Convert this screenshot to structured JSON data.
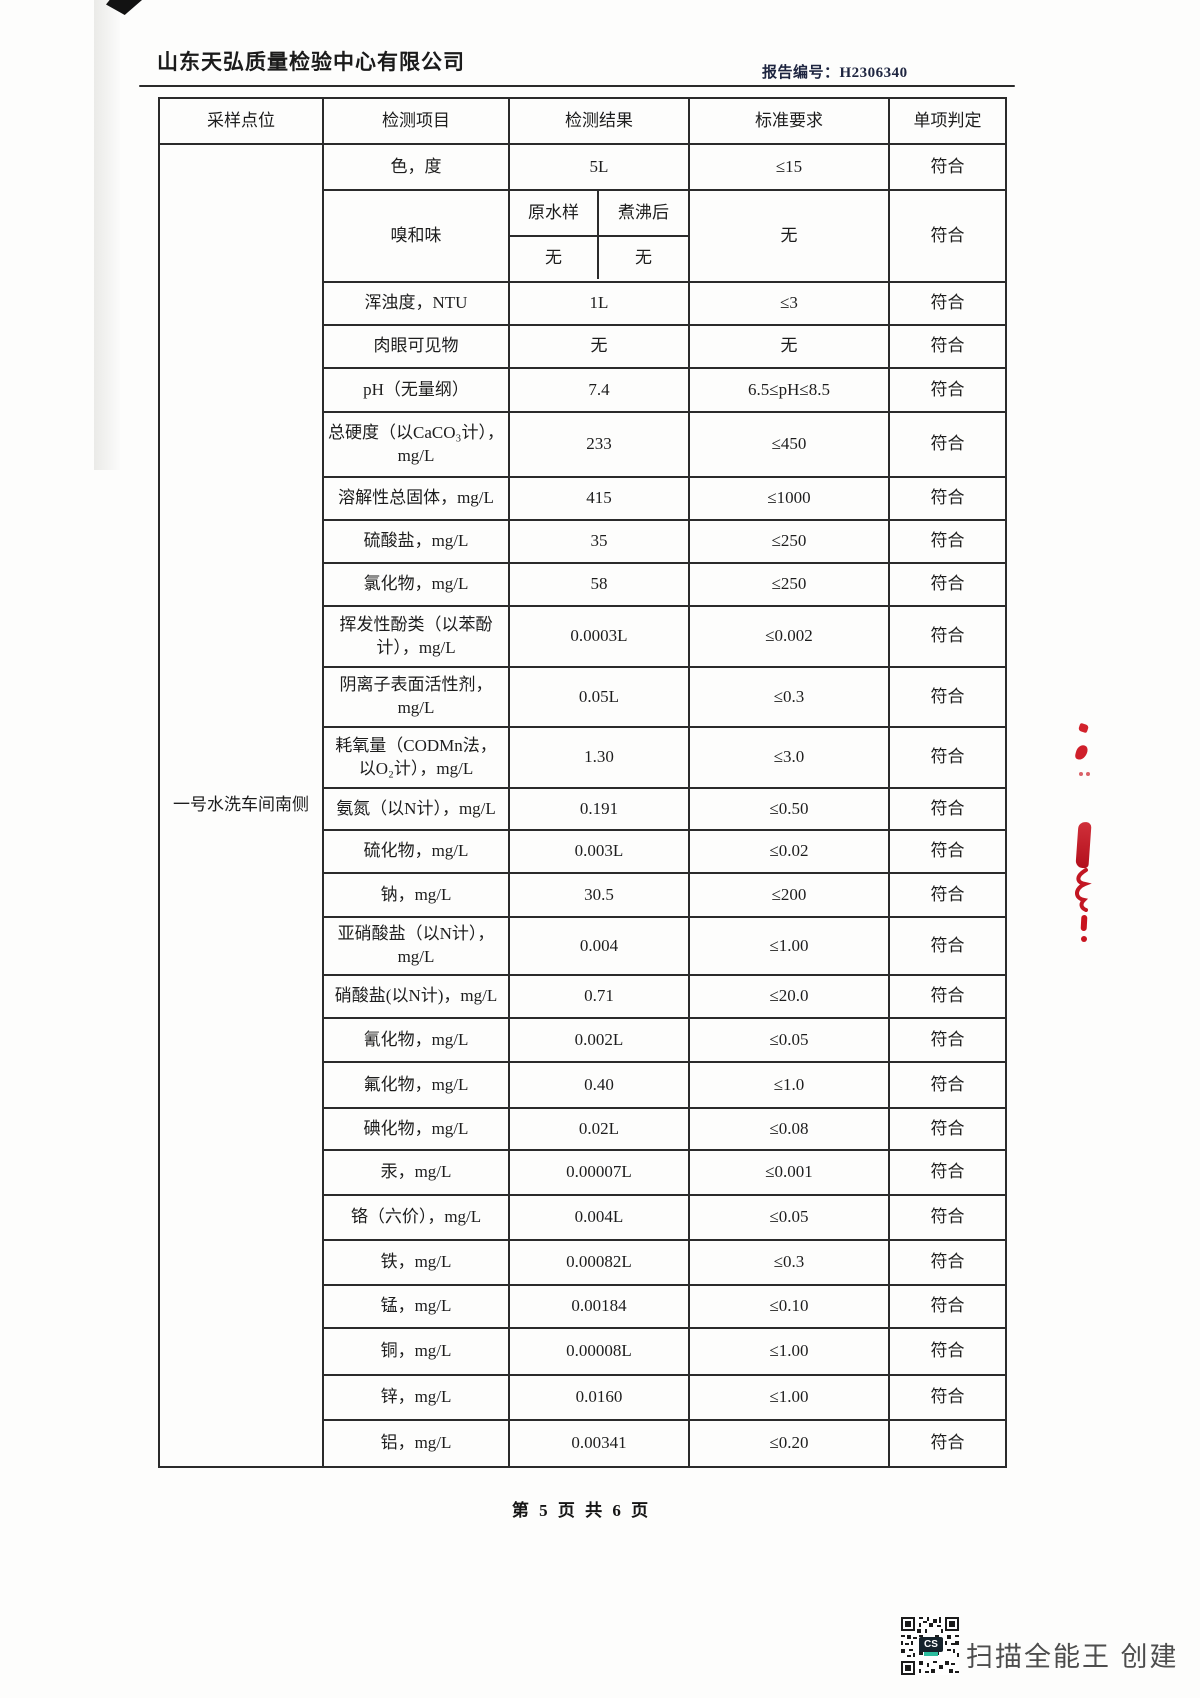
{
  "page": {
    "company_name": "山东天弘质量检验中心有限公司",
    "report_no_label": "报告编号：",
    "report_no_value": "H2306340",
    "page_footer": "第 5 页 共 6 页"
  },
  "table": {
    "headers": [
      "采样点位",
      "检测项目",
      "检测结果",
      "标准要求",
      "单项判定"
    ],
    "sampling_point": "一号水洗车间南侧",
    "rows": [
      {
        "item": "色，度",
        "result": "5L",
        "standard": "≤15",
        "judgment": "符合"
      },
      {
        "type": "split",
        "item": "嗅和味",
        "sub_headers": [
          "原水样",
          "煮沸后"
        ],
        "sub_values": [
          "无",
          "无"
        ],
        "standard": "无",
        "judgment": "符合"
      },
      {
        "item": "浑浊度，NTU",
        "result": "1L",
        "standard": "≤3",
        "judgment": "符合"
      },
      {
        "item": "肉眼可见物",
        "result": "无",
        "standard": "无",
        "judgment": "符合"
      },
      {
        "item": "pH（无量纲）",
        "result": "7.4",
        "standard": "6.5≤pH≤8.5",
        "judgment": "符合"
      },
      {
        "item": "总硬度（以CaCO₃计），mg/L",
        "result": "233",
        "standard": "≤450",
        "judgment": "符合"
      },
      {
        "item": "溶解性总固体，mg/L",
        "result": "415",
        "standard": "≤1000",
        "judgment": "符合"
      },
      {
        "item": "硫酸盐，mg/L",
        "result": "35",
        "standard": "≤250",
        "judgment": "符合"
      },
      {
        "item": "氯化物，mg/L",
        "result": "58",
        "standard": "≤250",
        "judgment": "符合"
      },
      {
        "item": "挥发性酚类（以苯酚计），mg/L",
        "result": "0.0003L",
        "standard": "≤0.002",
        "judgment": "符合"
      },
      {
        "item": "阴离子表面活性剂，mg/L",
        "result": "0.05L",
        "standard": "≤0.3",
        "judgment": "符合"
      },
      {
        "item": "耗氧量（CODMn法，以O₂计），mg/L",
        "result": "1.30",
        "standard": "≤3.0",
        "judgment": "符合"
      },
      {
        "item": "氨氮（以N计），mg/L",
        "result": "0.191",
        "standard": "≤0.50",
        "judgment": "符合"
      },
      {
        "item": "硫化物，mg/L",
        "result": "0.003L",
        "standard": "≤0.02",
        "judgment": "符合"
      },
      {
        "item": "钠，mg/L",
        "result": "30.5",
        "standard": "≤200",
        "judgment": "符合"
      },
      {
        "item": "亚硝酸盐（以N计），mg/L",
        "result": "0.004",
        "standard": "≤1.00",
        "judgment": "符合"
      },
      {
        "item": "硝酸盐(以N计)，mg/L",
        "result": "0.71",
        "standard": "≤20.0",
        "judgment": "符合"
      },
      {
        "item": "氰化物，mg/L",
        "result": "0.002L",
        "standard": "≤0.05",
        "judgment": "符合"
      },
      {
        "item": "氟化物，mg/L",
        "result": "0.40",
        "standard": "≤1.0",
        "judgment": "符合"
      },
      {
        "item": "碘化物，mg/L",
        "result": "0.02L",
        "standard": "≤0.08",
        "judgment": "符合"
      },
      {
        "item": "汞，mg/L",
        "result": "0.00007L",
        "standard": "≤0.001",
        "judgment": "符合"
      },
      {
        "item": "铬（六价），mg/L",
        "result": "0.004L",
        "standard": "≤0.05",
        "judgment": "符合"
      },
      {
        "item": "铁，mg/L",
        "result": "0.00082L",
        "standard": "≤0.3",
        "judgment": "符合"
      },
      {
        "item": "锰，mg/L",
        "result": "0.00184",
        "standard": "≤0.10",
        "judgment": "符合"
      },
      {
        "item": "铜，mg/L",
        "result": "0.00008L",
        "standard": "≤1.00",
        "judgment": "符合"
      },
      {
        "item": "锌，mg/L",
        "result": "0.0160",
        "standard": "≤1.00",
        "judgment": "符合"
      },
      {
        "item": "铝，mg/L",
        "result": "0.00341",
        "standard": "≤0.20",
        "judgment": "符合"
      }
    ]
  },
  "artifacts": {
    "qr_center_label": "CS",
    "scanner_caption": "扫描全能王 创建"
  },
  "colors": {
    "ink": "#1d1d1d",
    "report_no_ink": "#1e2540",
    "red_mark": "#c81a25",
    "qr_accent": "#2bbd9e",
    "caption_gray": "#4d4d4d"
  }
}
